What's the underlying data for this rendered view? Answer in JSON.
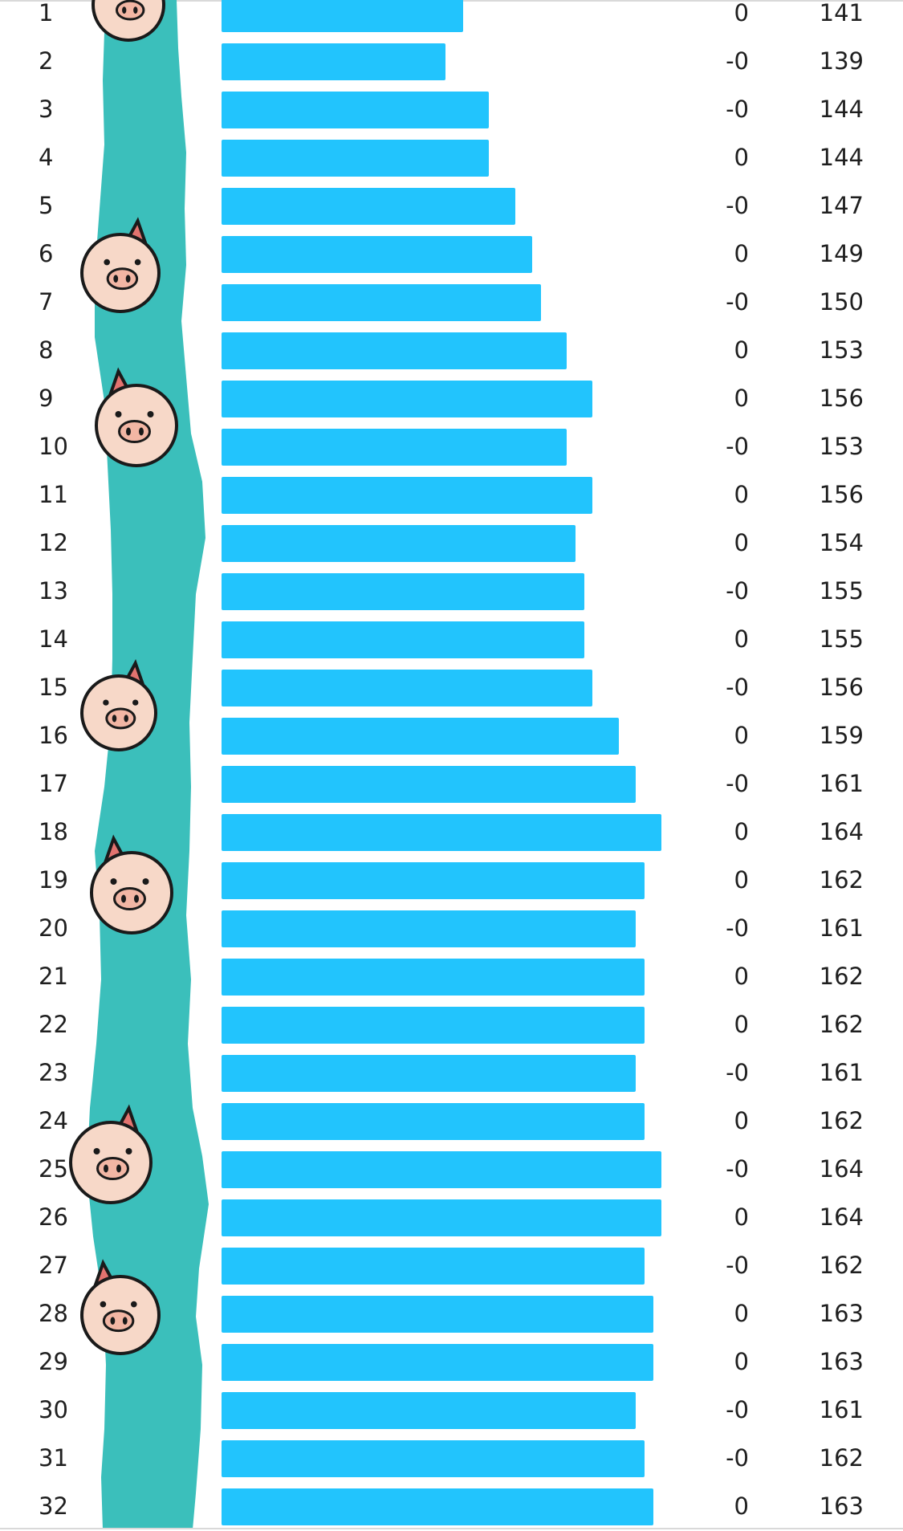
{
  "chart_data": {
    "type": "bar",
    "orientation": "horizontal",
    "title": "",
    "xlabel": "",
    "ylabel": "",
    "categories": [
      "1",
      "2",
      "3",
      "4",
      "5",
      "6",
      "7",
      "8",
      "9",
      "10",
      "11",
      "12",
      "13",
      "14",
      "15",
      "16",
      "17",
      "18",
      "19",
      "20",
      "21",
      "22",
      "23",
      "24",
      "25",
      "26",
      "27",
      "28",
      "29",
      "30",
      "31",
      "32"
    ],
    "values": [
      141,
      139,
      144,
      144,
      147,
      149,
      150,
      153,
      156,
      153,
      156,
      154,
      155,
      155,
      156,
      159,
      161,
      164,
      162,
      161,
      162,
      162,
      161,
      162,
      164,
      164,
      162,
      163,
      163,
      161,
      162,
      163
    ],
    "delta_labels": [
      "0",
      "-0",
      "-0",
      "0",
      "-0",
      "0",
      "-0",
      "0",
      "0",
      "-0",
      "0",
      "0",
      "-0",
      "0",
      "-0",
      "0",
      "-0",
      "0",
      "0",
      "-0",
      "0",
      "0",
      "-0",
      "0",
      "-0",
      "0",
      "-0",
      "0",
      "0",
      "-0",
      "-0",
      "0"
    ],
    "value_labels": [
      "141",
      "139",
      "144",
      "144",
      "147",
      "149",
      "150",
      "153",
      "156",
      "153",
      "156",
      "154",
      "155",
      "155",
      "156",
      "159",
      "161",
      "164",
      "162",
      "161",
      "162",
      "162",
      "161",
      "162",
      "164",
      "164",
      "162",
      "163",
      "163",
      "161",
      "162",
      "163"
    ],
    "bar_color": "#22c4fd",
    "grid": false,
    "legend": "none"
  },
  "decoration": {
    "ribbon_color": "#3bbfbb",
    "ribbon_icon": "pig-face-icon",
    "pig_skin_color": "#f7d8c8",
    "pig_ear_color": "#e3736f",
    "outline_color": "#1a1a1a"
  }
}
